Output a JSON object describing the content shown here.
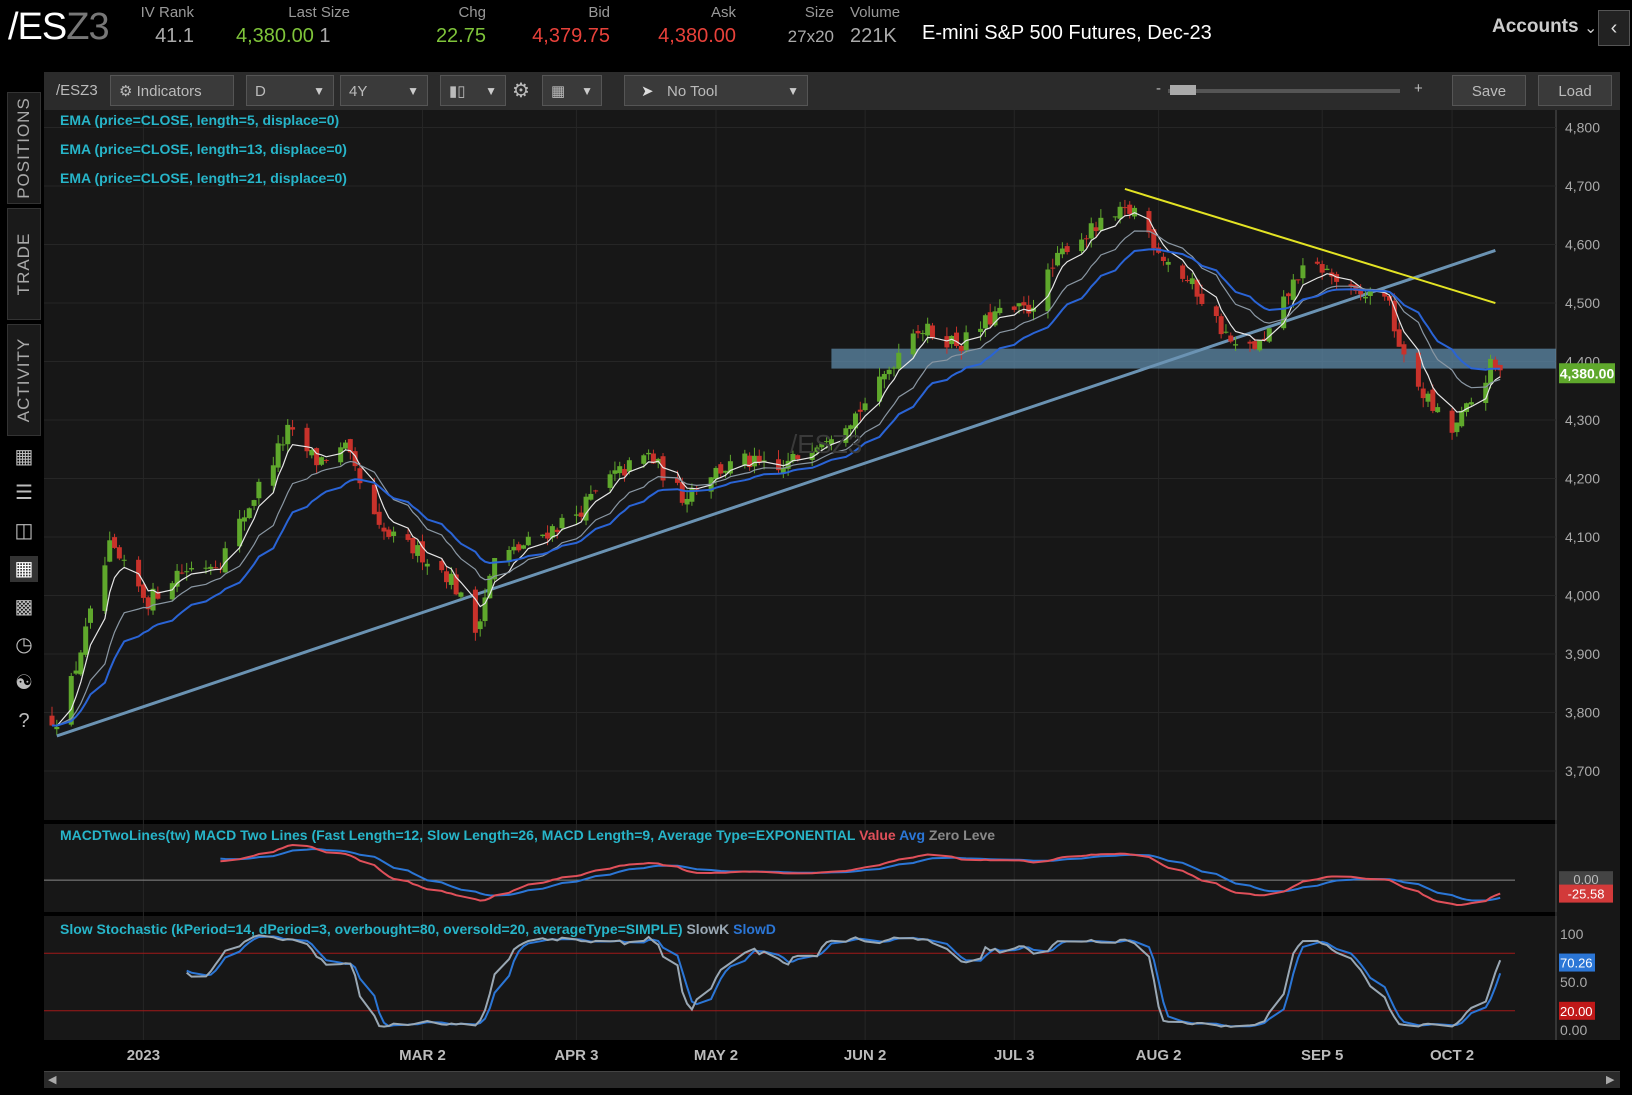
{
  "header": {
    "symbol_main": "/ES",
    "symbol_suffix": "Z3",
    "iv_rank_label": "IV Rank",
    "iv_rank": "41.1",
    "last_size_label": "Last Size",
    "last_price": "4,380.00",
    "last_qty": "1",
    "chg_label": "Chg",
    "chg": "22.75",
    "bid_label": "Bid",
    "bid": "4,379.75",
    "ask_label": "Ask",
    "ask": "4,380.00",
    "size_label": "Size",
    "size": "27x20",
    "volume_label": "Volume",
    "volume": "221K",
    "description": "E-mini S&P 500 Futures, Dec-23",
    "accounts_label": "Accounts"
  },
  "sidebar": {
    "tabs": [
      "POSITIONS",
      "TRADE",
      "ACTIVITY"
    ]
  },
  "toolbar": {
    "symbol": "/ESZ3",
    "indicators": "Indicators",
    "aggregation": "D",
    "timeframe": "4Y",
    "tool": "No Tool",
    "zoom_minus": "-",
    "zoom_plus": "+",
    "save": "Save",
    "load": "Load"
  },
  "colors": {
    "up": "#5fa82c",
    "down": "#c8322b",
    "ema_fast": "#e6e6e6",
    "ema_mid": "#8a97a3",
    "ema_slow": "#2a64d6",
    "trendline": "#6b93b3",
    "resistance": "#e3e324",
    "zone": "#5d89a8",
    "macd_value": "#e0505a",
    "macd_avg": "#2b76d6",
    "stoch_k": "#9aa8b4",
    "stoch_d": "#2b76d6"
  },
  "chart_data": [
    {
      "type": "candlestick",
      "watermark": "/ESZ3",
      "studies": [
        "EMA (price=CLOSE, length=5, displace=0)",
        "EMA (price=CLOSE, length=13, displace=0)",
        "EMA (price=CLOSE, length=21, displace=0)"
      ],
      "x_ticks": [
        "2023",
        "MAR 2",
        "APR 3",
        "MAY 2",
        "JUN 2",
        "JUL 3",
        "AUG 2",
        "SEP 5",
        "OCT 2"
      ],
      "y_ticks": [
        "4,800",
        "4,700",
        "4,600",
        "4,500",
        "4,400",
        "4,300",
        "4,200",
        "4,100",
        "4,000",
        "3,900",
        "3,800",
        "3,700"
      ],
      "ylim": [
        3630,
        4830
      ],
      "last_price_label": "4,380.00",
      "x_range": [
        "2022-12-15",
        "2023-10-13"
      ],
      "trendline_support": [
        [
          "2022-12-16",
          3760
        ],
        [
          "2023-10-11",
          4590
        ]
      ],
      "trendline_resistance": [
        [
          "2023-07-26",
          4695
        ],
        [
          "2023-10-11",
          4500
        ]
      ],
      "zone": {
        "from": "2023-05-26",
        "to": "2023-10-11",
        "low": 4388,
        "high": 4422
      },
      "waypoints_close": [
        [
          "2022-12-16",
          3790
        ],
        [
          "2022-12-19",
          3850
        ],
        [
          "2022-12-27",
          4080
        ],
        [
          "2023-01-04",
          3990
        ],
        [
          "2023-01-10",
          4040
        ],
        [
          "2023-01-19",
          4060
        ],
        [
          "2023-02-02",
          4280
        ],
        [
          "2023-02-08",
          4230
        ],
        [
          "2023-02-14",
          4250
        ],
        [
          "2023-02-21",
          4110
        ],
        [
          "2023-03-02",
          4070
        ],
        [
          "2023-03-08",
          4030
        ],
        [
          "2023-03-13",
          3940
        ],
        [
          "2023-03-17",
          4060
        ],
        [
          "2023-03-22",
          4080
        ],
        [
          "2023-04-03",
          4140
        ],
        [
          "2023-04-10",
          4200
        ],
        [
          "2023-04-18",
          4240
        ],
        [
          "2023-04-25",
          4170
        ],
        [
          "2023-05-01",
          4210
        ],
        [
          "2023-05-08",
          4230
        ],
        [
          "2023-05-15",
          4210
        ],
        [
          "2023-05-22",
          4260
        ],
        [
          "2023-05-31",
          4310
        ],
        [
          "2023-06-05",
          4360
        ],
        [
          "2023-06-12",
          4460
        ],
        [
          "2023-06-22",
          4430
        ],
        [
          "2023-06-29",
          4480
        ],
        [
          "2023-07-06",
          4490
        ],
        [
          "2023-07-14",
          4600
        ],
        [
          "2023-07-25",
          4650
        ],
        [
          "2023-07-28",
          4660
        ],
        [
          "2023-08-03",
          4580
        ],
        [
          "2023-08-10",
          4520
        ],
        [
          "2023-08-18",
          4420
        ],
        [
          "2023-08-24",
          4430
        ],
        [
          "2023-08-31",
          4550
        ],
        [
          "2023-09-05",
          4560
        ],
        [
          "2023-09-12",
          4510
        ],
        [
          "2023-09-18",
          4520
        ],
        [
          "2023-09-22",
          4400
        ],
        [
          "2023-09-28",
          4320
        ],
        [
          "2023-10-02",
          4280
        ],
        [
          "2023-10-06",
          4330
        ],
        [
          "2023-10-10",
          4390
        ],
        [
          "2023-10-12",
          4380
        ]
      ]
    },
    {
      "type": "line",
      "title": "MACDTwoLines(tw) MACD Two Lines (Fast Length=12, Slow Length=26, MACD Length=9, Average Type=EXPONENTIAL",
      "legend": [
        "Value",
        "Avg",
        "Zero Leve"
      ],
      "y_labels": [
        "0.00",
        "-25.58"
      ],
      "zero_level": 0
    },
    {
      "type": "line",
      "title": "Slow Stochastic (kPeriod=14, dPeriod=3, overbought=80, oversold=20, averageType=SIMPLE)",
      "legend": [
        "SlowK",
        "SlowD"
      ],
      "y_ticks": [
        "100",
        "50.0",
        "0.00"
      ],
      "y_labels": [
        "70.26",
        "20.00"
      ],
      "levels": [
        80,
        20
      ]
    }
  ]
}
